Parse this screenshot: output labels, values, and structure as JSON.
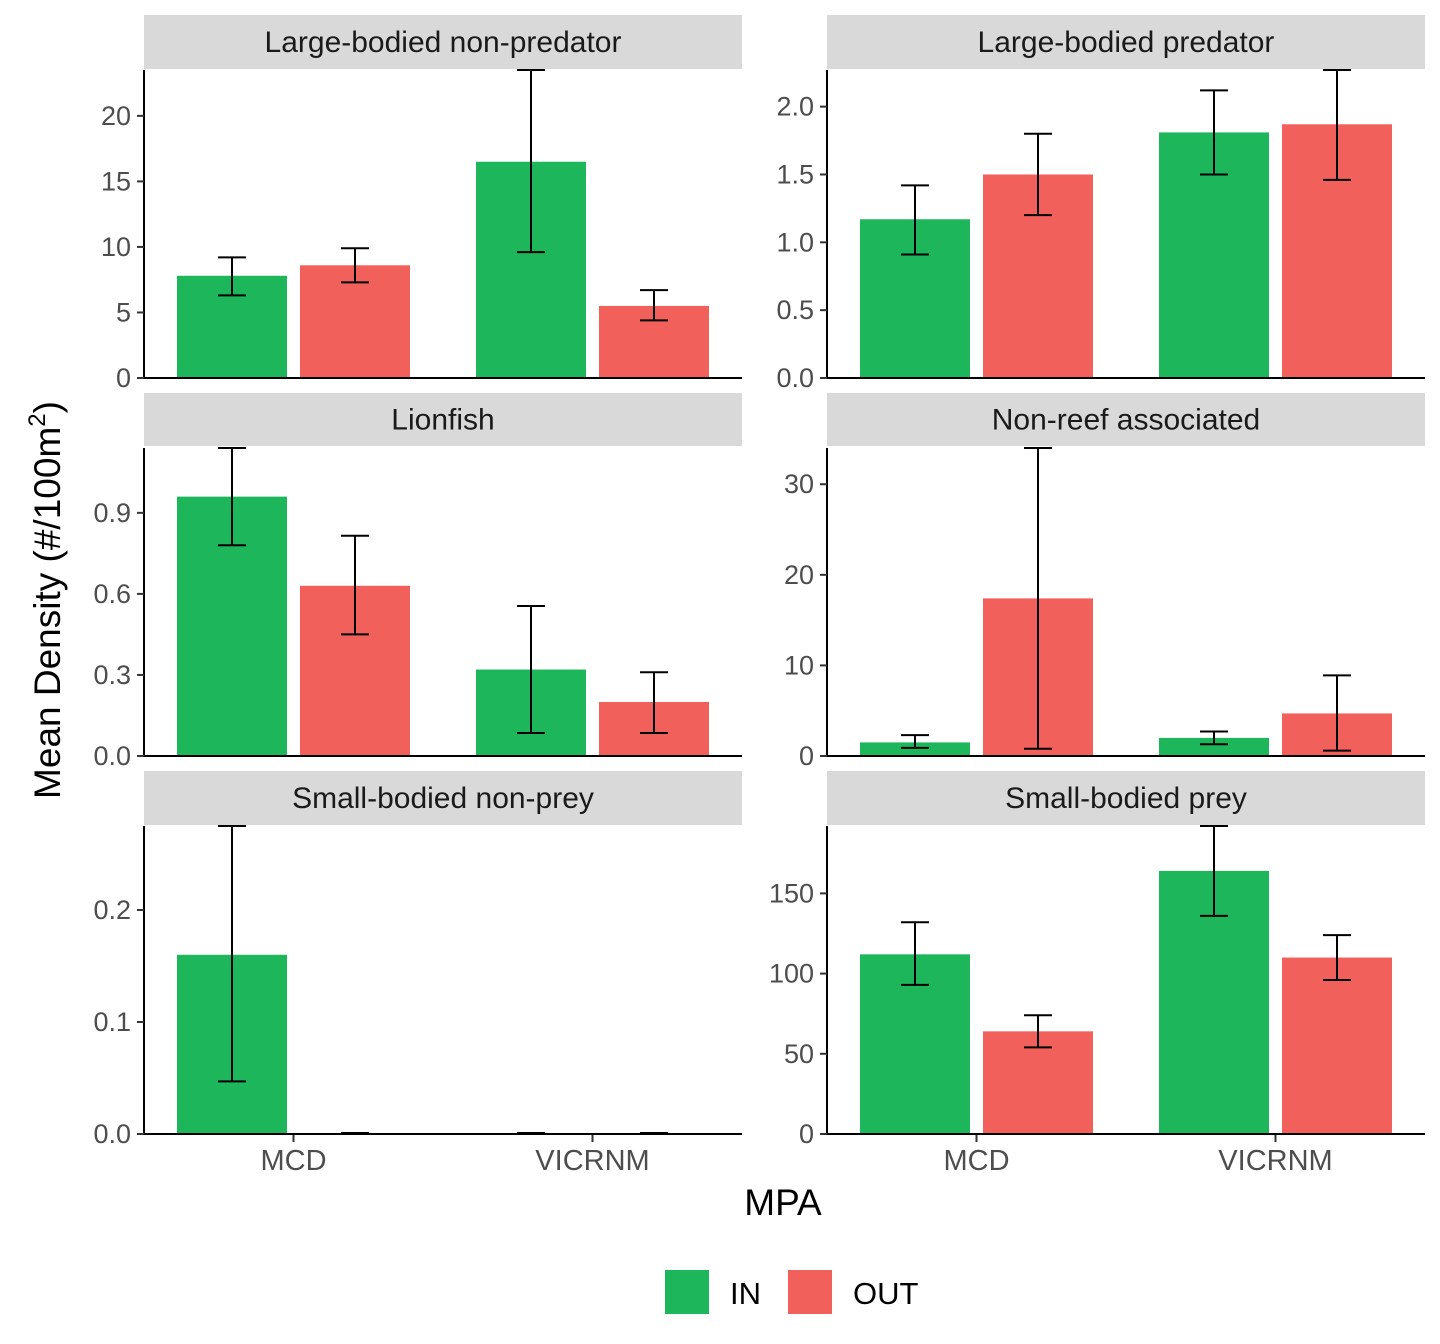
{
  "chart_data": {
    "type": "bar",
    "xlabel": "MPA",
    "ylabel": "Mean Density (#/100m",
    "ylabel_sup": "2",
    "ylabel_close": ")",
    "categories": [
      "MCD",
      "VICRNM"
    ],
    "legend": {
      "position": "bottom",
      "items": [
        {
          "name": "IN",
          "color": "#1db65a"
        },
        {
          "name": "OUT",
          "color": "#f2605c"
        }
      ]
    },
    "grid": false,
    "panels": [
      {
        "title": "Large-bodied non-predator",
        "ylim": [
          0,
          23.5
        ],
        "yticks": [
          0,
          5,
          10,
          15,
          20
        ],
        "ytick_labels": [
          "0",
          "5",
          "10",
          "15",
          "20"
        ],
        "show_x_ticks": false,
        "series": [
          {
            "name": "IN",
            "values": [
              7.8,
              16.5
            ],
            "err_low": [
              6.3,
              9.6
            ],
            "err_high": [
              9.2,
              23.5
            ]
          },
          {
            "name": "OUT",
            "values": [
              8.6,
              5.5
            ],
            "err_low": [
              7.3,
              4.4
            ],
            "err_high": [
              9.9,
              6.7
            ]
          }
        ]
      },
      {
        "title": "Large-bodied predator",
        "ylim": [
          0,
          2.27
        ],
        "yticks": [
          0,
          0.5,
          1.0,
          1.5,
          2.0
        ],
        "ytick_labels": [
          "0.0",
          "0.5",
          "1.0",
          "1.5",
          "2.0"
        ],
        "show_x_ticks": false,
        "series": [
          {
            "name": "IN",
            "values": [
              1.17,
              1.81
            ],
            "err_low": [
              0.91,
              1.5
            ],
            "err_high": [
              1.42,
              2.12
            ]
          },
          {
            "name": "OUT",
            "values": [
              1.5,
              1.87
            ],
            "err_low": [
              1.2,
              1.46
            ],
            "err_high": [
              1.8,
              2.27
            ]
          }
        ]
      },
      {
        "title": "Lionfish",
        "ylim": [
          0,
          1.14
        ],
        "yticks": [
          0,
          0.3,
          0.6,
          0.9
        ],
        "ytick_labels": [
          "0.0",
          "0.3",
          "0.6",
          "0.9"
        ],
        "show_x_ticks": false,
        "series": [
          {
            "name": "IN",
            "values": [
              0.96,
              0.32
            ],
            "err_low": [
              0.78,
              0.085
            ],
            "err_high": [
              1.14,
              0.555
            ]
          },
          {
            "name": "OUT",
            "values": [
              0.63,
              0.2
            ],
            "err_low": [
              0.45,
              0.085
            ],
            "err_high": [
              0.815,
              0.31
            ]
          }
        ]
      },
      {
        "title": "Non-reef associated",
        "ylim": [
          0,
          34
        ],
        "yticks": [
          0,
          10,
          20,
          30
        ],
        "ytick_labels": [
          "0",
          "10",
          "20",
          "30"
        ],
        "show_x_ticks": false,
        "series": [
          {
            "name": "IN",
            "values": [
              1.5,
              2.0
            ],
            "err_low": [
              0.9,
              1.3
            ],
            "err_high": [
              2.3,
              2.7
            ]
          },
          {
            "name": "OUT",
            "values": [
              17.4,
              4.7
            ],
            "err_low": [
              0.8,
              0.6
            ],
            "err_high": [
              34,
              8.9
            ]
          }
        ]
      },
      {
        "title": "Small-bodied non-prey",
        "ylim": [
          0,
          0.275
        ],
        "yticks": [
          0,
          0.1,
          0.2
        ],
        "ytick_labels": [
          "0.0",
          "0.1",
          "0.2"
        ],
        "show_x_ticks": true,
        "series": [
          {
            "name": "IN",
            "values": [
              0.16,
              0
            ],
            "err_low": [
              0.047,
              null
            ],
            "err_high": [
              0.275,
              null
            ]
          },
          {
            "name": "OUT",
            "values": [
              0,
              0
            ],
            "err_low": [
              null,
              null
            ],
            "err_high": [
              null,
              null
            ]
          }
        ]
      },
      {
        "title": "Small-bodied prey",
        "ylim": [
          0,
          192
        ],
        "yticks": [
          0,
          50,
          100,
          150
        ],
        "ytick_labels": [
          "0",
          "50",
          "100",
          "150"
        ],
        "show_x_ticks": true,
        "series": [
          {
            "name": "IN",
            "values": [
              112,
              164
            ],
            "err_low": [
              93,
              136
            ],
            "err_high": [
              132,
              192
            ]
          },
          {
            "name": "OUT",
            "values": [
              64,
              110
            ],
            "err_low": [
              54,
              96
            ],
            "err_high": [
              74,
              124
            ]
          }
        ]
      }
    ]
  }
}
